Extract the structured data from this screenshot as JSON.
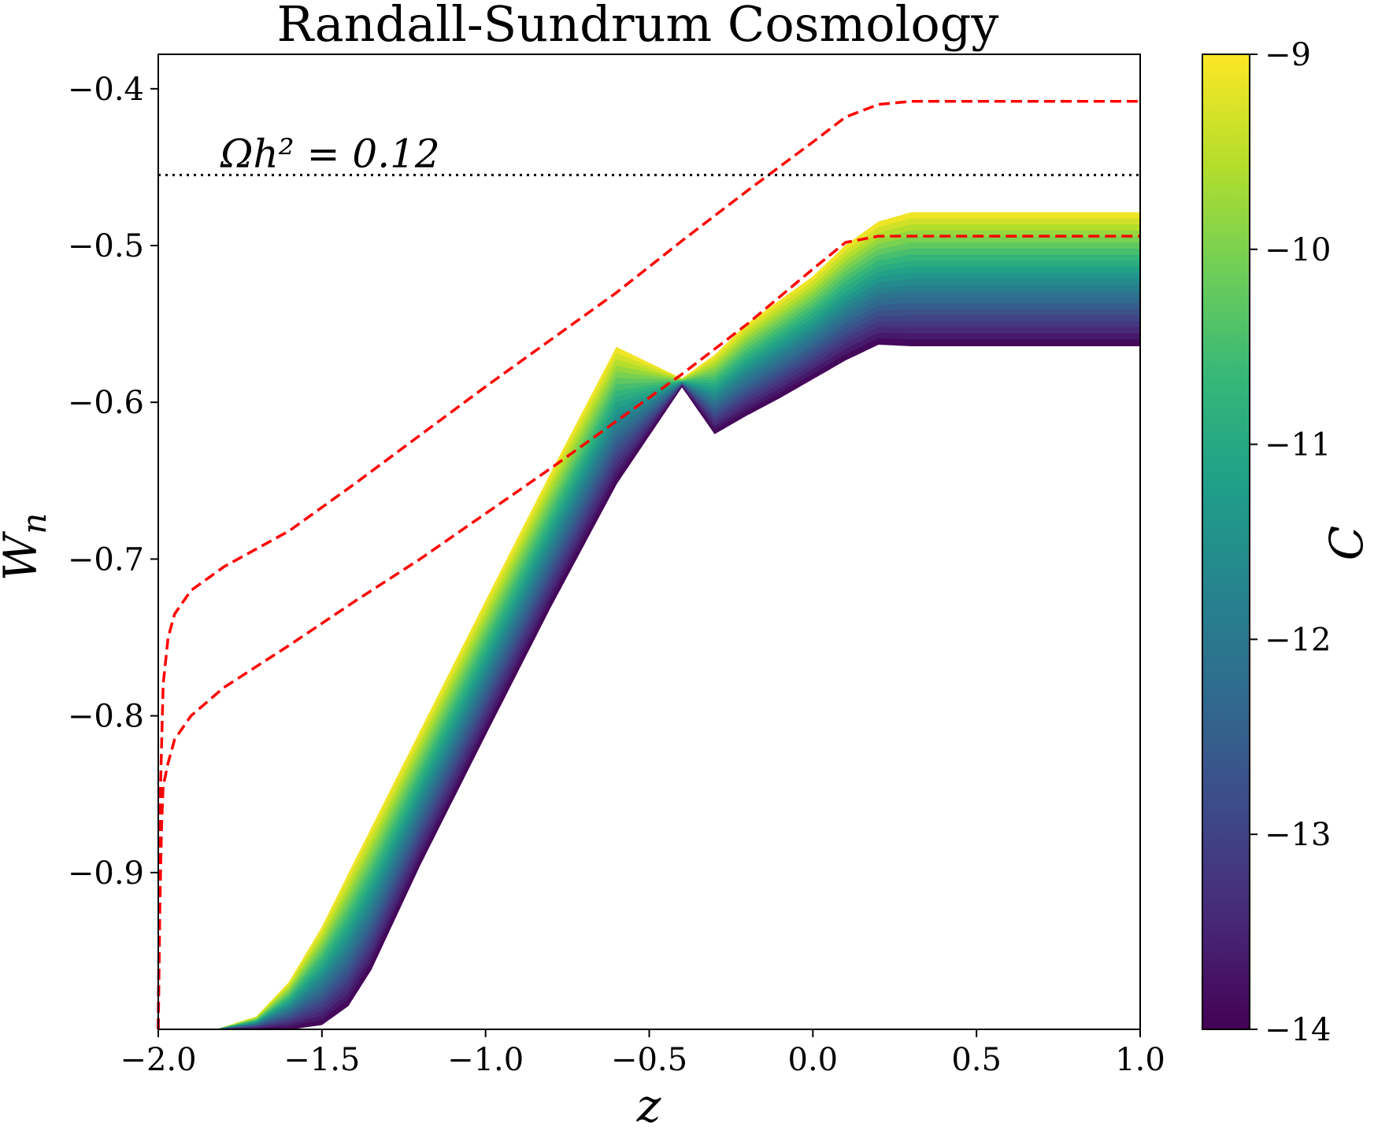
{
  "chart_data": {
    "type": "area",
    "title": "Randall-Sundrum Cosmology",
    "xlabel": "z",
    "ylabel": "W",
    "ylabel_subscript": "n",
    "xlim": [
      -2.0,
      1.0
    ],
    "ylim": [
      -1.0,
      -0.378
    ],
    "x_ticks": [
      -2.0,
      -1.5,
      -1.0,
      -0.5,
      0.0,
      0.5,
      1.0
    ],
    "x_tick_labels": [
      "−2.0",
      "−1.5",
      "−1.0",
      "−0.5",
      "0.0",
      "0.5",
      "1.0"
    ],
    "y_ticks": [
      -0.9,
      -0.8,
      -0.7,
      -0.6,
      -0.5,
      -0.4
    ],
    "y_tick_labels": [
      "−0.9",
      "−0.8",
      "−0.7",
      "−0.6",
      "−0.5",
      "−0.4"
    ],
    "grid": false,
    "colorbar": {
      "label": "C",
      "range": [
        -14,
        -9
      ],
      "ticks": [
        -9,
        -10,
        -11,
        -12,
        -13,
        -14
      ],
      "tick_labels": [
        "−9",
        "−10",
        "−11",
        "−12",
        "−13",
        "−14"
      ],
      "colormap": [
        "#fde725",
        "#b5de2b",
        "#6ece58",
        "#35b779",
        "#1f9e89",
        "#26828e",
        "#31688e",
        "#3e4989",
        "#482878",
        "#440154"
      ]
    },
    "band": {
      "name": "C band",
      "upper_edge_C_-9": [
        [
          -1.82,
          -1.0
        ],
        [
          -1.7,
          -0.992
        ],
        [
          -1.6,
          -0.97
        ],
        [
          -1.5,
          -0.935
        ],
        [
          -1.4,
          -0.893
        ],
        [
          -1.2,
          -0.81
        ],
        [
          -1.0,
          -0.727
        ],
        [
          -0.8,
          -0.645
        ],
        [
          -0.6,
          -0.565
        ],
        [
          -0.4,
          -0.585
        ],
        [
          -0.3,
          -0.57
        ],
        [
          -0.2,
          -0.55
        ],
        [
          -0.1,
          -0.535
        ],
        [
          0.0,
          -0.52
        ],
        [
          0.1,
          -0.5
        ],
        [
          0.2,
          -0.485
        ],
        [
          0.3,
          -0.479
        ],
        [
          1.0,
          -0.479
        ]
      ],
      "lower_edge_C_-14": [
        [
          -1.6,
          -1.0
        ],
        [
          -1.5,
          -0.997
        ],
        [
          -1.42,
          -0.985
        ],
        [
          -1.35,
          -0.962
        ],
        [
          -1.2,
          -0.895
        ],
        [
          -1.0,
          -0.812
        ],
        [
          -0.8,
          -0.73
        ],
        [
          -0.6,
          -0.652
        ],
        [
          -0.4,
          -0.59
        ],
        [
          -0.3,
          -0.62
        ],
        [
          -0.2,
          -0.608
        ],
        [
          -0.1,
          -0.597
        ],
        [
          0.0,
          -0.585
        ],
        [
          0.1,
          -0.573
        ],
        [
          0.2,
          -0.563
        ],
        [
          0.3,
          -0.564
        ],
        [
          1.0,
          -0.564
        ]
      ]
    },
    "series": [
      {
        "style": "red dashed",
        "color": "#ff0000",
        "points": [
          [
            -2.0,
            -1.0
          ],
          [
            -1.995,
            -0.86
          ],
          [
            -1.985,
            -0.78
          ],
          [
            -1.97,
            -0.75
          ],
          [
            -1.95,
            -0.735
          ],
          [
            -1.9,
            -0.72
          ],
          [
            -1.8,
            -0.705
          ],
          [
            -1.6,
            -0.682
          ],
          [
            -1.4,
            -0.652
          ],
          [
            -1.2,
            -0.621
          ],
          [
            -1.0,
            -0.59
          ],
          [
            -0.8,
            -0.56
          ],
          [
            -0.6,
            -0.53
          ],
          [
            -0.4,
            -0.497
          ],
          [
            -0.2,
            -0.465
          ],
          [
            0.0,
            -0.434
          ],
          [
            0.1,
            -0.418
          ],
          [
            0.2,
            -0.41
          ],
          [
            0.3,
            -0.408
          ],
          [
            1.0,
            -0.408
          ]
        ]
      },
      {
        "style": "red dashed",
        "color": "#ff0000",
        "points": [
          [
            -2.0,
            -1.0
          ],
          [
            -1.995,
            -0.92
          ],
          [
            -1.99,
            -0.87
          ],
          [
            -1.985,
            -0.845
          ],
          [
            -1.97,
            -0.83
          ],
          [
            -1.95,
            -0.815
          ],
          [
            -1.9,
            -0.8
          ],
          [
            -1.8,
            -0.782
          ],
          [
            -1.6,
            -0.755
          ],
          [
            -1.4,
            -0.727
          ],
          [
            -1.2,
            -0.7
          ],
          [
            -1.0,
            -0.671
          ],
          [
            -0.8,
            -0.642
          ],
          [
            -0.6,
            -0.612
          ],
          [
            -0.4,
            -0.582
          ],
          [
            -0.2,
            -0.55
          ],
          [
            0.0,
            -0.515
          ],
          [
            0.1,
            -0.498
          ],
          [
            0.2,
            -0.494
          ],
          [
            1.0,
            -0.494
          ]
        ]
      }
    ],
    "reference_line": {
      "style": "black dotted",
      "y": -0.455,
      "label": "Ωh² = 0.12"
    }
  }
}
